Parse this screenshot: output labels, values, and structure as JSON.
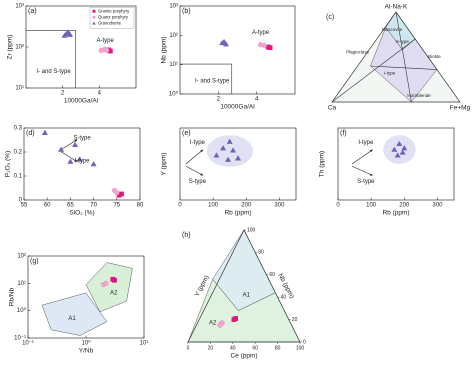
{
  "chart_data": [
    {
      "type": "scatter",
      "panel": "(a)",
      "xlabel": "10000Ga/Al",
      "ylabel": "Zr (ppm)",
      "xlim": [
        0,
        6
      ],
      "ylim": [
        10,
        1000
      ],
      "ylog": true,
      "xticks": [
        2,
        4
      ],
      "yticks": [
        {
          "value": 10,
          "label": "10¹"
        },
        {
          "value": 100,
          "label": "10²"
        },
        {
          "value": 1000,
          "label": "10³"
        }
      ],
      "annotations": [
        "A-type",
        "I- and S-type"
      ],
      "legend": "upper right",
      "series": [
        {
          "name": "Granite porphyry",
          "color": "#e0187e",
          "marker": "square",
          "x": [
            4.5,
            4.6
          ],
          "y": [
            85,
            80
          ]
        },
        {
          "name": "Quartz porphyry",
          "color": "#f3a6cf",
          "marker": "circle",
          "x": [
            4.1,
            4.3,
            4.4
          ],
          "y": [
            82,
            88,
            84
          ]
        },
        {
          "name": "Granodiorite",
          "color": "#6f63b8",
          "marker": "triangle",
          "x": [
            2.1,
            2.2,
            2.3,
            2.4
          ],
          "y": [
            190,
            210,
            230,
            200
          ]
        }
      ]
    },
    {
      "type": "scatter",
      "panel": "(b)",
      "xlabel": "10000Ga/Al",
      "ylabel": "Nb (ppm)",
      "xlim": [
        0,
        6
      ],
      "ylim": [
        1,
        1000
      ],
      "ylog": true,
      "xticks": [
        2,
        4
      ],
      "yticks": [
        {
          "value": 1,
          "label": "10⁰"
        },
        {
          "value": 10,
          "label": "10¹"
        },
        {
          "value": 100,
          "label": "10²"
        },
        {
          "value": 1000,
          "label": "10³"
        }
      ],
      "annotations": [
        "A-type",
        "I- and S-type"
      ],
      "series": [
        {
          "color": "#e0187e",
          "marker": "square",
          "x": [
            4.6,
            4.7
          ],
          "y": [
            40,
            38
          ]
        },
        {
          "color": "#f3a6cf",
          "marker": "circle",
          "x": [
            4.2,
            4.4
          ],
          "y": [
            48,
            45
          ]
        },
        {
          "color": "#6f63b8",
          "marker": "triangle",
          "x": [
            2.2,
            2.3,
            2.4
          ],
          "y": [
            55,
            60,
            50
          ]
        }
      ]
    },
    {
      "type": "ternary",
      "panel": "(c)",
      "vertices": [
        "Al-Na-K",
        "Ca",
        "Fe+Mg"
      ],
      "annotations": [
        "Muscovite",
        "Biotite",
        "Hornblende",
        "Plagioclase",
        "S-type",
        "I-type"
      ]
    },
    {
      "type": "scatter",
      "panel": "(d)",
      "xlabel": "SiO₂ (%)",
      "ylabel": "P₂O₅ (%)",
      "xlim": [
        55,
        80
      ],
      "ylim": [
        0,
        0.3
      ],
      "xticks": [
        55,
        60,
        65,
        70,
        75,
        80
      ],
      "yticks": [
        0,
        0.1,
        0.2,
        0.3
      ],
      "annotations": [
        "S-type",
        "I-type"
      ],
      "series": [
        {
          "color": "#e0187e",
          "marker": "square",
          "x": [
            75.5,
            76
          ],
          "y": [
            0.02,
            0.025
          ]
        },
        {
          "color": "#f3a6cf",
          "marker": "circle",
          "x": [
            74.5,
            75
          ],
          "y": [
            0.04,
            0.03
          ]
        },
        {
          "color": "#6f63b8",
          "marker": "triangle",
          "x": [
            59.5,
            63,
            66,
            65,
            67,
            70
          ],
          "y": [
            0.28,
            0.21,
            0.23,
            0.16,
            0.17,
            0.15
          ]
        }
      ]
    },
    {
      "type": "scatter",
      "panel": "(e)",
      "xlabel": "Rb (ppm)",
      "ylabel": "Y (ppm)",
      "xlim": [
        0,
        350
      ],
      "ylim": [
        0,
        100
      ],
      "xticks": [
        0,
        100,
        200,
        300
      ],
      "annotations": [
        "I-type",
        "S-type"
      ],
      "series": [
        {
          "color": "#6f63b8",
          "marker": "triangle",
          "x": [
            110,
            130,
            150,
            160,
            145,
            175
          ],
          "y": [
            62,
            72,
            81,
            69,
            56,
            58
          ]
        }
      ]
    },
    {
      "type": "scatter",
      "panel": "(f)",
      "xlabel": "Rb (ppm)",
      "ylabel": "Th (ppm)",
      "xlim": [
        0,
        350
      ],
      "ylim": [
        0,
        100
      ],
      "xticks": [
        0,
        100,
        200,
        300
      ],
      "annotations": [
        "I-type",
        "S-type"
      ],
      "series": [
        {
          "color": "#6f63b8",
          "marker": "triangle",
          "x": [
            170,
            185,
            195,
            180,
            200
          ],
          "y": [
            70,
            78,
            66,
            62,
            72
          ]
        }
      ]
    },
    {
      "type": "scatter",
      "panel": "(g)",
      "xlabel": "Y/Nb",
      "ylabel": "Rb/Nb",
      "xlim": [
        0.1,
        10
      ],
      "ylim": [
        0.1,
        100
      ],
      "xlog": true,
      "ylog": true,
      "xticks": [
        {
          "value": 0.1,
          "label": "10⁻¹"
        },
        {
          "value": 1,
          "label": "10⁰"
        },
        {
          "value": 10,
          "label": "10¹"
        }
      ],
      "yticks": [
        {
          "value": 0.1,
          "label": "10⁻¹"
        },
        {
          "value": 1,
          "label": "10⁰"
        },
        {
          "value": 10,
          "label": "10¹"
        },
        {
          "value": 100,
          "label": "10²"
        }
      ],
      "annotations": [
        "A1",
        "A2"
      ],
      "series": [
        {
          "color": "#e0187e",
          "marker": "square",
          "x": [
            2.9,
            3.1
          ],
          "y": [
            14,
            13
          ]
        },
        {
          "color": "#f3a6cf",
          "marker": "circle",
          "x": [
            2.0,
            2.2
          ],
          "y": [
            9,
            10
          ]
        }
      ]
    },
    {
      "type": "ternary",
      "panel": "(h)",
      "side_labels": {
        "left": "Y (ppm)",
        "right": "Nb (ppm)",
        "bottom": "Ce (ppm)"
      },
      "lim": [
        0,
        100
      ],
      "ticks": [
        0,
        20,
        40,
        60,
        80,
        100
      ],
      "annotations": [
        "A1",
        "A2"
      ],
      "series": [
        {
          "color": "#e0187e",
          "marker": "square",
          "top": [
            20,
            21
          ],
          "left": [
            49,
            47
          ],
          "right": [
            31,
            32
          ]
        },
        {
          "color": "#f3a6cf",
          "marker": "circle",
          "top": [
            16,
            17,
            15
          ],
          "left": [
            63,
            61,
            64
          ],
          "right": [
            21,
            22,
            21
          ]
        }
      ]
    }
  ]
}
